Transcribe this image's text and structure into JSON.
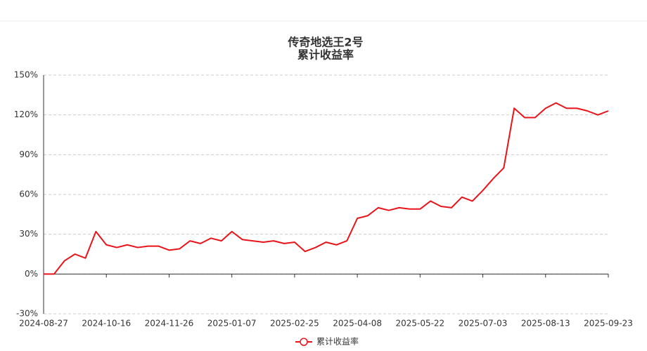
{
  "chart_data": {
    "type": "line",
    "title": "传奇地选王2号",
    "subtitle": "累计收益率",
    "categories": [
      "2024-08-27",
      null,
      null,
      null,
      null,
      null,
      "2024-10-16",
      null,
      null,
      null,
      null,
      null,
      "2024-11-26",
      null,
      null,
      null,
      null,
      null,
      "2025-01-07",
      null,
      null,
      null,
      null,
      null,
      "2025-02-25",
      null,
      null,
      null,
      null,
      null,
      "2025-04-08",
      null,
      null,
      null,
      null,
      null,
      "2025-05-22",
      null,
      null,
      null,
      null,
      null,
      "2025-07-03",
      null,
      null,
      null,
      null,
      null,
      "2025-08-13",
      null,
      null,
      null,
      null,
      null,
      "2025-09-23"
    ],
    "series": [
      {
        "name": "累计收益率",
        "color": "#e8141a",
        "values": [
          0,
          0,
          10,
          15,
          12,
          32,
          22,
          20,
          22,
          20,
          21,
          21,
          18,
          19,
          25,
          23,
          27,
          25,
          32,
          26,
          25,
          24,
          25,
          23,
          24,
          17,
          20,
          24,
          22,
          25,
          42,
          44,
          50,
          48,
          50,
          49,
          49,
          55,
          51,
          50,
          58,
          55,
          63,
          72,
          80,
          125,
          118,
          118,
          125,
          129,
          125,
          125,
          123,
          120,
          123
        ]
      }
    ],
    "ylim": [
      -30,
      150
    ],
    "yticks": [
      {
        "value": -30,
        "label": "-30%"
      },
      {
        "value": 0,
        "label": "0%"
      },
      {
        "value": 30,
        "label": "30%"
      },
      {
        "value": 60,
        "label": "60%"
      },
      {
        "value": 90,
        "label": "90%"
      },
      {
        "value": 120,
        "label": "120%"
      },
      {
        "value": 150,
        "label": "150%"
      }
    ],
    "grid": true
  }
}
